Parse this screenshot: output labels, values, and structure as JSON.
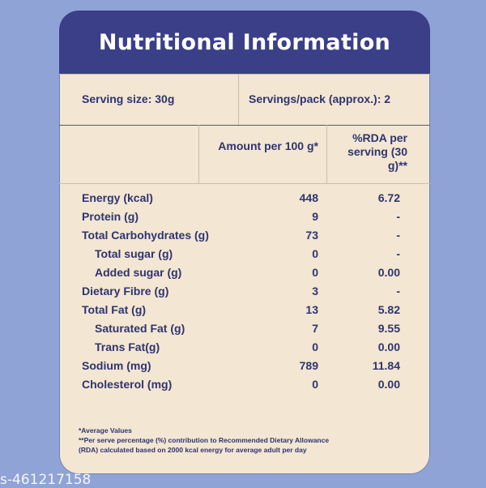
{
  "title": "Nutritional Information",
  "serving": {
    "size": "Serving size: 30g",
    "per_pack": "Servings/pack (approx.): 2"
  },
  "columns": {
    "amount": "Amount per 100 g*",
    "rda": "%RDA per serving (30 g)**"
  },
  "rows": [
    {
      "label": "Energy (kcal)",
      "amount": "448",
      "rda": "6.72",
      "indent": false
    },
    {
      "label": "Protein (g)",
      "amount": "9",
      "rda": "-",
      "indent": false
    },
    {
      "label": "Total Carbohydrates (g)",
      "amount": "73",
      "rda": "-",
      "indent": false
    },
    {
      "label": "Total sugar (g)",
      "amount": "0",
      "rda": "-",
      "indent": true
    },
    {
      "label": "Added sugar (g)",
      "amount": "0",
      "rda": "0.00",
      "indent": true
    },
    {
      "label": "Dietary Fibre (g)",
      "amount": "3",
      "rda": "-",
      "indent": false
    },
    {
      "label": "Total Fat (g)",
      "amount": "13",
      "rda": "5.82",
      "indent": false
    },
    {
      "label": "Saturated Fat (g)",
      "amount": "7",
      "rda": "9.55",
      "indent": true
    },
    {
      "label": "Trans Fat(g)",
      "amount": "0",
      "rda": "0.00",
      "indent": true
    },
    {
      "label": "Sodium (mg)",
      "amount": "789",
      "rda": "11.84",
      "indent": false
    },
    {
      "label": "Cholesterol (mg)",
      "amount": "0",
      "rda": "0.00",
      "indent": false
    }
  ],
  "footnotes": {
    "line1": "*Average Values",
    "line2": "**Per serve percentage (%) contribution to Recommended Dietary Allowance",
    "line3": "(RDA) calculated based on 2000 kcal energy for average adult per day"
  },
  "watermark": "s-461217158"
}
